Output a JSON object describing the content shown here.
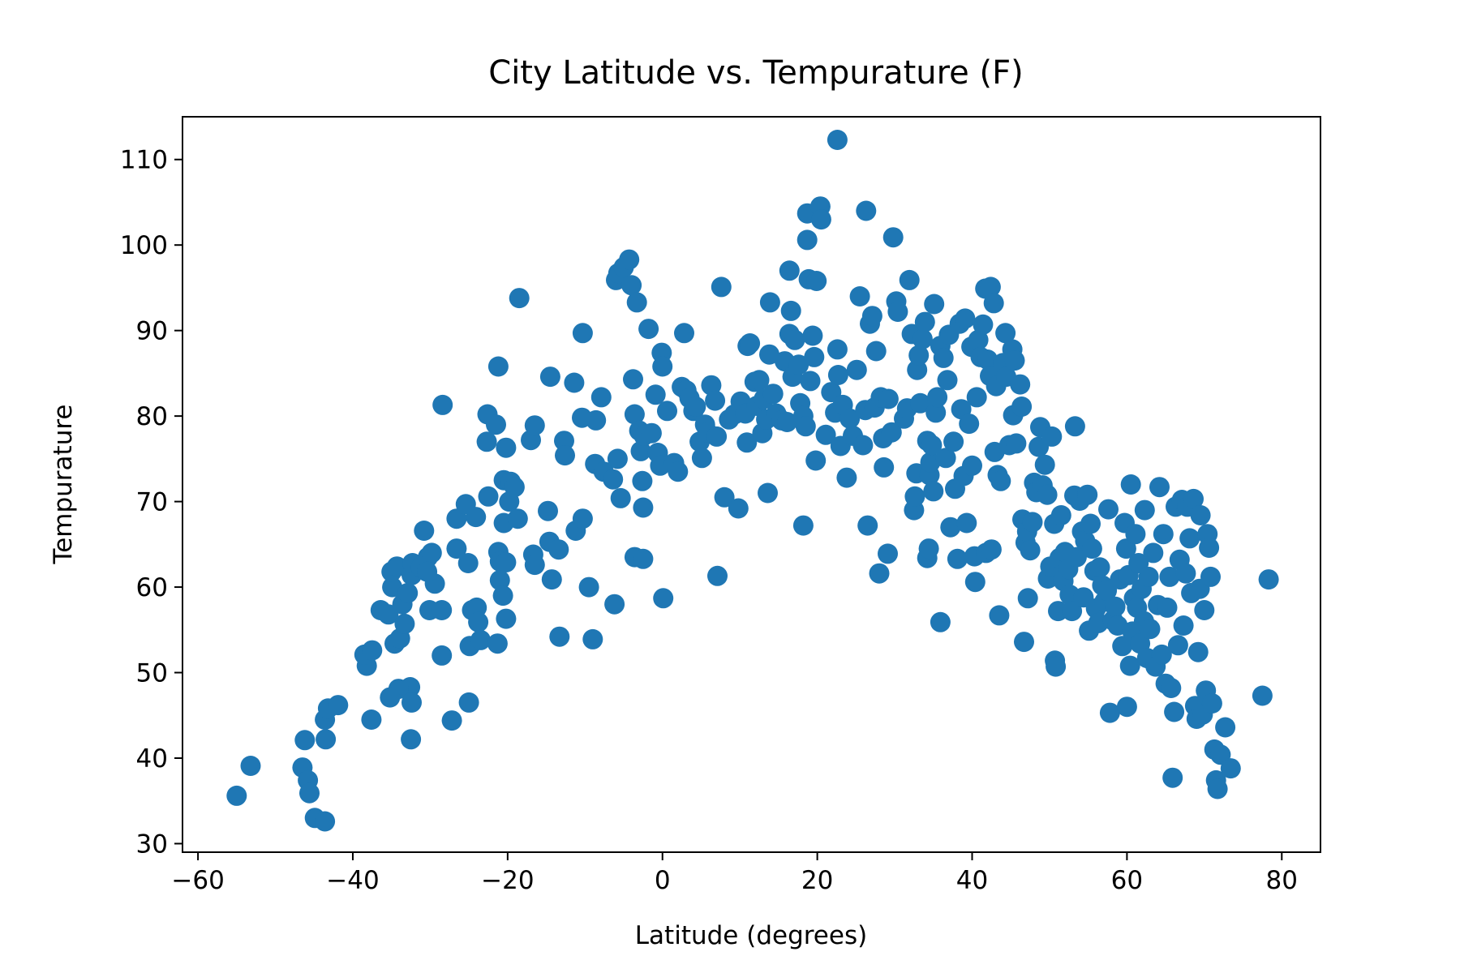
{
  "chart_data": {
    "type": "scatter",
    "title": "City Latitude vs. Tempurature (F)",
    "xlabel": "Latitude (degrees)",
    "ylabel": "Tempurature",
    "xlim": [
      -62,
      85
    ],
    "ylim": [
      29,
      115
    ],
    "xticks": [
      -60,
      -40,
      -20,
      0,
      20,
      40,
      60,
      80
    ],
    "xtick_labels": [
      "−60",
      "−40",
      "−20",
      "0",
      "20",
      "40",
      "60",
      "80"
    ],
    "yticks": [
      30,
      40,
      50,
      60,
      70,
      80,
      90,
      100,
      110
    ],
    "ytick_labels": [
      "30",
      "40",
      "50",
      "60",
      "70",
      "80",
      "90",
      "100",
      "110"
    ],
    "grid": false,
    "marker_color": "#1f77b4",
    "points": [
      [
        -55.0,
        35.6
      ],
      [
        -53.2,
        39.1
      ],
      [
        -46.2,
        42.1
      ],
      [
        -46.5,
        38.9
      ],
      [
        -45.8,
        37.4
      ],
      [
        -45.6,
        35.9
      ],
      [
        -44.9,
        33.0
      ],
      [
        -43.6,
        32.6
      ],
      [
        -43.5,
        42.2
      ],
      [
        -43.6,
        44.5
      ],
      [
        -43.2,
        45.8
      ],
      [
        -41.9,
        46.2
      ],
      [
        -37.6,
        44.5
      ],
      [
        -38.2,
        50.8
      ],
      [
        -38.5,
        52.1
      ],
      [
        -37.5,
        52.6
      ],
      [
        -36.4,
        57.3
      ],
      [
        -35.4,
        56.8
      ],
      [
        -34.9,
        60.0
      ],
      [
        -35.0,
        61.8
      ],
      [
        -34.3,
        62.4
      ],
      [
        -34.6,
        53.4
      ],
      [
        -33.9,
        54.0
      ],
      [
        -33.3,
        55.7
      ],
      [
        -33.6,
        58.0
      ],
      [
        -32.9,
        59.3
      ],
      [
        -32.4,
        61.4
      ],
      [
        -32.3,
        62.8
      ],
      [
        -31.2,
        62.3
      ],
      [
        -30.8,
        66.6
      ],
      [
        -30.3,
        63.5
      ],
      [
        -29.8,
        64.0
      ],
      [
        -29.4,
        60.4
      ],
      [
        -30.4,
        61.8
      ],
      [
        -30.1,
        57.3
      ],
      [
        -28.5,
        57.3
      ],
      [
        -28.5,
        52.0
      ],
      [
        -28.4,
        81.3
      ],
      [
        -32.6,
        48.3
      ],
      [
        -34.1,
        48.1
      ],
      [
        -35.2,
        47.1
      ],
      [
        -32.4,
        46.5
      ],
      [
        -32.5,
        42.2
      ],
      [
        -27.2,
        44.4
      ],
      [
        -25.0,
        46.5
      ],
      [
        -26.6,
        64.5
      ],
      [
        -25.1,
        62.8
      ],
      [
        -24.9,
        53.1
      ],
      [
        -24.6,
        57.3
      ],
      [
        -24.0,
        57.6
      ],
      [
        -23.8,
        55.9
      ],
      [
        -23.5,
        53.8
      ],
      [
        -26.6,
        68.0
      ],
      [
        -25.4,
        69.7
      ],
      [
        -24.1,
        68.2
      ],
      [
        -22.5,
        70.6
      ],
      [
        -22.6,
        80.2
      ],
      [
        -21.5,
        79.0
      ],
      [
        -22.7,
        77.0
      ],
      [
        -21.2,
        85.8
      ],
      [
        -21.2,
        64.1
      ],
      [
        -21.0,
        63.0
      ],
      [
        -20.2,
        62.9
      ],
      [
        -21.0,
        60.8
      ],
      [
        -20.6,
        59.0
      ],
      [
        -21.3,
        53.4
      ],
      [
        -20.2,
        56.3
      ],
      [
        -20.5,
        67.5
      ],
      [
        -19.8,
        70.0
      ],
      [
        -20.5,
        72.5
      ],
      [
        -19.6,
        72.3
      ],
      [
        -19.1,
        71.7
      ],
      [
        -18.7,
        68.0
      ],
      [
        -18.5,
        93.8
      ],
      [
        -20.2,
        76.3
      ],
      [
        -16.7,
        63.8
      ],
      [
        -16.5,
        62.6
      ],
      [
        -17.0,
        77.2
      ],
      [
        -16.5,
        78.9
      ],
      [
        -14.8,
        68.9
      ],
      [
        -14.6,
        65.3
      ],
      [
        -13.4,
        64.4
      ],
      [
        -14.3,
        60.9
      ],
      [
        -13.3,
        54.2
      ],
      [
        -14.5,
        84.6
      ],
      [
        -12.7,
        77.1
      ],
      [
        -12.6,
        75.4
      ],
      [
        -11.2,
        66.6
      ],
      [
        -11.4,
        83.9
      ],
      [
        -10.4,
        79.8
      ],
      [
        -10.3,
        89.7
      ],
      [
        -10.3,
        68.0
      ],
      [
        -9.5,
        60.0
      ],
      [
        -9.0,
        53.9
      ],
      [
        -8.7,
        74.4
      ],
      [
        -8.6,
        79.5
      ],
      [
        -7.9,
        82.2
      ],
      [
        -7.6,
        73.5
      ],
      [
        -6.4,
        72.6
      ],
      [
        -5.8,
        75.0
      ],
      [
        -5.4,
        70.4
      ],
      [
        -6.2,
        58.0
      ],
      [
        -6.0,
        95.9
      ],
      [
        -5.7,
        96.7
      ],
      [
        -5.0,
        97.4
      ],
      [
        -4.3,
        98.3
      ],
      [
        -4.0,
        95.3
      ],
      [
        -3.3,
        93.3
      ],
      [
        -3.8,
        84.3
      ],
      [
        -3.6,
        80.2
      ],
      [
        -3.0,
        78.3
      ],
      [
        -2.8,
        75.9
      ],
      [
        -2.4,
        77.7
      ],
      [
        -2.6,
        72.4
      ],
      [
        -2.5,
        69.3
      ],
      [
        -3.6,
        63.5
      ],
      [
        -2.5,
        63.3
      ],
      [
        -1.8,
        90.2
      ],
      [
        -1.4,
        78.0
      ],
      [
        -0.9,
        82.5
      ],
      [
        -0.6,
        75.7
      ],
      [
        -0.3,
        74.2
      ],
      [
        -0.1,
        87.4
      ],
      [
        0.0,
        85.8
      ],
      [
        0.1,
        58.7
      ],
      [
        0.6,
        80.6
      ],
      [
        1.5,
        74.5
      ],
      [
        2.0,
        73.5
      ],
      [
        2.5,
        83.4
      ],
      [
        2.8,
        89.7
      ],
      [
        3.1,
        83.0
      ],
      [
        3.5,
        82.1
      ],
      [
        4.0,
        80.6
      ],
      [
        4.3,
        81.1
      ],
      [
        4.8,
        77.0
      ],
      [
        5.1,
        75.1
      ],
      [
        5.5,
        79.0
      ],
      [
        5.8,
        78.1
      ],
      [
        6.3,
        83.6
      ],
      [
        6.8,
        81.8
      ],
      [
        7.0,
        77.6
      ],
      [
        7.1,
        61.3
      ],
      [
        7.6,
        95.1
      ],
      [
        8.0,
        70.5
      ],
      [
        8.6,
        79.6
      ],
      [
        9.3,
        80.2
      ],
      [
        9.8,
        69.2
      ],
      [
        10.1,
        81.7
      ],
      [
        10.7,
        80.3
      ],
      [
        10.9,
        76.9
      ],
      [
        11.0,
        88.2
      ],
      [
        11.3,
        88.5
      ],
      [
        11.9,
        84.0
      ],
      [
        12.2,
        81.2
      ],
      [
        12.5,
        84.2
      ],
      [
        12.9,
        78.0
      ],
      [
        13.1,
        82.0
      ],
      [
        13.4,
        79.6
      ],
      [
        13.6,
        71.0
      ],
      [
        13.8,
        87.2
      ],
      [
        13.9,
        93.3
      ],
      [
        14.3,
        82.6
      ],
      [
        14.7,
        80.3
      ],
      [
        15.4,
        79.5
      ],
      [
        15.8,
        86.4
      ],
      [
        16.1,
        79.3
      ],
      [
        16.4,
        97.0
      ],
      [
        16.4,
        89.6
      ],
      [
        16.6,
        92.3
      ],
      [
        16.8,
        84.6
      ],
      [
        17.1,
        88.9
      ],
      [
        17.6,
        86.0
      ],
      [
        17.8,
        81.5
      ],
      [
        18.2,
        80.0
      ],
      [
        18.2,
        67.2
      ],
      [
        18.5,
        78.8
      ],
      [
        18.7,
        100.6
      ],
      [
        18.7,
        103.7
      ],
      [
        18.9,
        96.0
      ],
      [
        19.1,
        84.1
      ],
      [
        19.4,
        89.4
      ],
      [
        19.6,
        86.9
      ],
      [
        19.8,
        74.8
      ],
      [
        19.9,
        95.8
      ],
      [
        20.4,
        104.5
      ],
      [
        20.5,
        103.0
      ],
      [
        21.1,
        77.8
      ],
      [
        21.8,
        82.8
      ],
      [
        22.3,
        80.4
      ],
      [
        22.6,
        87.8
      ],
      [
        22.7,
        84.8
      ],
      [
        22.6,
        112.3
      ],
      [
        23.0,
        76.5
      ],
      [
        23.3,
        81.3
      ],
      [
        23.8,
        72.8
      ],
      [
        24.2,
        79.7
      ],
      [
        24.6,
        77.7
      ],
      [
        25.1,
        85.4
      ],
      [
        25.5,
        94.0
      ],
      [
        25.9,
        76.6
      ],
      [
        26.2,
        80.7
      ],
      [
        26.3,
        104.0
      ],
      [
        26.5,
        67.2
      ],
      [
        26.8,
        90.8
      ],
      [
        27.1,
        91.7
      ],
      [
        27.4,
        81.0
      ],
      [
        27.6,
        87.6
      ],
      [
        28.0,
        61.6
      ],
      [
        28.2,
        82.2
      ],
      [
        28.5,
        77.4
      ],
      [
        28.6,
        74.0
      ],
      [
        29.1,
        63.9
      ],
      [
        29.2,
        82.0
      ],
      [
        29.6,
        78.1
      ],
      [
        29.8,
        100.9
      ],
      [
        30.2,
        93.4
      ],
      [
        30.4,
        92.2
      ],
      [
        31.2,
        79.7
      ],
      [
        31.6,
        80.9
      ],
      [
        31.9,
        95.9
      ],
      [
        32.2,
        89.6
      ],
      [
        32.5,
        69.0
      ],
      [
        32.6,
        70.6
      ],
      [
        32.8,
        73.3
      ],
      [
        32.9,
        85.4
      ],
      [
        33.1,
        87.1
      ],
      [
        33.3,
        81.5
      ],
      [
        33.6,
        89.0
      ],
      [
        33.9,
        91.0
      ],
      [
        34.2,
        77.1
      ],
      [
        34.2,
        63.4
      ],
      [
        34.4,
        64.5
      ],
      [
        34.5,
        73.1
      ],
      [
        34.6,
        74.6
      ],
      [
        34.8,
        76.6
      ],
      [
        35.0,
        71.2
      ],
      [
        35.1,
        93.1
      ],
      [
        35.3,
        80.4
      ],
      [
        35.5,
        82.2
      ],
      [
        35.9,
        88.2
      ],
      [
        35.9,
        55.9
      ],
      [
        36.3,
        86.8
      ],
      [
        36.6,
        75.1
      ],
      [
        36.8,
        84.2
      ],
      [
        37.0,
        89.5
      ],
      [
        37.2,
        67.0
      ],
      [
        37.6,
        77.0
      ],
      [
        37.8,
        71.5
      ],
      [
        38.1,
        63.3
      ],
      [
        38.4,
        90.8
      ],
      [
        38.6,
        80.8
      ],
      [
        38.9,
        73.0
      ],
      [
        39.1,
        91.4
      ],
      [
        39.3,
        67.5
      ],
      [
        39.6,
        79.1
      ],
      [
        39.9,
        88.1
      ],
      [
        40.0,
        74.2
      ],
      [
        40.3,
        63.6
      ],
      [
        40.4,
        60.6
      ],
      [
        40.6,
        82.2
      ],
      [
        40.8,
        88.9
      ],
      [
        41.1,
        86.9
      ],
      [
        41.4,
        90.7
      ],
      [
        41.7,
        94.9
      ],
      [
        41.8,
        64.0
      ],
      [
        42.0,
        86.6
      ],
      [
        42.3,
        84.7
      ],
      [
        42.4,
        95.1
      ],
      [
        42.5,
        64.4
      ],
      [
        42.8,
        93.2
      ],
      [
        42.9,
        75.8
      ],
      [
        43.1,
        83.5
      ],
      [
        43.3,
        73.1
      ],
      [
        43.5,
        56.7
      ],
      [
        43.7,
        72.4
      ],
      [
        44.0,
        86.2
      ],
      [
        44.3,
        89.7
      ],
      [
        44.4,
        84.6
      ],
      [
        44.8,
        76.6
      ],
      [
        45.2,
        87.8
      ],
      [
        45.3,
        80.1
      ],
      [
        45.5,
        86.5
      ],
      [
        45.7,
        76.8
      ],
      [
        46.2,
        83.7
      ],
      [
        46.4,
        81.1
      ],
      [
        46.5,
        67.9
      ],
      [
        46.7,
        53.6
      ],
      [
        46.9,
        65.2
      ],
      [
        47.1,
        66.5
      ],
      [
        47.2,
        58.7
      ],
      [
        47.5,
        64.3
      ],
      [
        47.8,
        67.6
      ],
      [
        48.0,
        72.2
      ],
      [
        48.3,
        71.1
      ],
      [
        48.6,
        76.4
      ],
      [
        48.8,
        78.7
      ],
      [
        49.1,
        71.9
      ],
      [
        49.4,
        74.3
      ],
      [
        49.7,
        70.8
      ],
      [
        49.8,
        61.0
      ],
      [
        50.1,
        62.4
      ],
      [
        50.3,
        77.6
      ],
      [
        50.6,
        67.4
      ],
      [
        50.7,
        51.4
      ],
      [
        50.8,
        50.7
      ],
      [
        51.1,
        57.2
      ],
      [
        51.3,
        63.4
      ],
      [
        51.5,
        68.4
      ],
      [
        51.8,
        60.7
      ],
      [
        52.0,
        64.1
      ],
      [
        52.4,
        62.1
      ],
      [
        52.6,
        59.1
      ],
      [
        52.9,
        57.2
      ],
      [
        53.2,
        70.7
      ],
      [
        53.3,
        78.8
      ],
      [
        53.5,
        63.5
      ],
      [
        53.9,
        70.1
      ],
      [
        54.2,
        66.5
      ],
      [
        54.4,
        58.8
      ],
      [
        54.6,
        65.4
      ],
      [
        54.9,
        70.8
      ],
      [
        55.1,
        54.9
      ],
      [
        55.3,
        67.4
      ],
      [
        55.5,
        64.5
      ],
      [
        55.8,
        61.9
      ],
      [
        56.0,
        57.5
      ],
      [
        56.3,
        55.8
      ],
      [
        56.5,
        62.3
      ],
      [
        56.8,
        60.2
      ],
      [
        57.1,
        58.3
      ],
      [
        57.4,
        59.6
      ],
      [
        57.6,
        69.1
      ],
      [
        57.8,
        45.3
      ],
      [
        58.2,
        56.1
      ],
      [
        58.5,
        57.7
      ],
      [
        58.8,
        55.5
      ],
      [
        59.1,
        60.9
      ],
      [
        59.4,
        53.1
      ],
      [
        59.7,
        67.5
      ],
      [
        59.9,
        64.5
      ],
      [
        60.0,
        46.0
      ],
      [
        60.2,
        61.4
      ],
      [
        60.4,
        50.8
      ],
      [
        60.5,
        72.0
      ],
      [
        60.7,
        54.8
      ],
      [
        60.9,
        58.7
      ],
      [
        61.1,
        66.2
      ],
      [
        61.3,
        57.6
      ],
      [
        61.5,
        62.8
      ],
      [
        61.7,
        53.4
      ],
      [
        61.9,
        59.8
      ],
      [
        62.2,
        56.0
      ],
      [
        62.3,
        69.0
      ],
      [
        62.6,
        51.7
      ],
      [
        62.8,
        61.2
      ],
      [
        63.0,
        55.1
      ],
      [
        63.4,
        64.0
      ],
      [
        63.7,
        50.7
      ],
      [
        64.0,
        57.9
      ],
      [
        64.2,
        71.7
      ],
      [
        64.5,
        52.1
      ],
      [
        64.7,
        66.2
      ],
      [
        65.0,
        48.7
      ],
      [
        65.2,
        57.6
      ],
      [
        65.5,
        61.2
      ],
      [
        65.7,
        48.2
      ],
      [
        65.9,
        37.7
      ],
      [
        66.1,
        45.4
      ],
      [
        66.3,
        69.4
      ],
      [
        66.6,
        53.2
      ],
      [
        66.8,
        63.2
      ],
      [
        67.1,
        70.2
      ],
      [
        67.3,
        55.5
      ],
      [
        67.6,
        61.6
      ],
      [
        67.8,
        69.4
      ],
      [
        68.1,
        65.7
      ],
      [
        68.3,
        59.3
      ],
      [
        68.6,
        70.3
      ],
      [
        68.8,
        46.1
      ],
      [
        69.0,
        44.6
      ],
      [
        69.2,
        52.4
      ],
      [
        69.4,
        59.8
      ],
      [
        69.5,
        68.4
      ],
      [
        69.8,
        45.1
      ],
      [
        70.0,
        57.3
      ],
      [
        70.2,
        47.9
      ],
      [
        70.4,
        66.2
      ],
      [
        70.6,
        64.6
      ],
      [
        70.8,
        61.2
      ],
      [
        71.0,
        46.4
      ],
      [
        71.3,
        41.0
      ],
      [
        71.5,
        37.4
      ],
      [
        71.7,
        36.4
      ],
      [
        72.1,
        40.4
      ],
      [
        72.7,
        43.6
      ],
      [
        73.4,
        38.8
      ],
      [
        77.5,
        47.3
      ],
      [
        78.3,
        60.9
      ]
    ]
  }
}
